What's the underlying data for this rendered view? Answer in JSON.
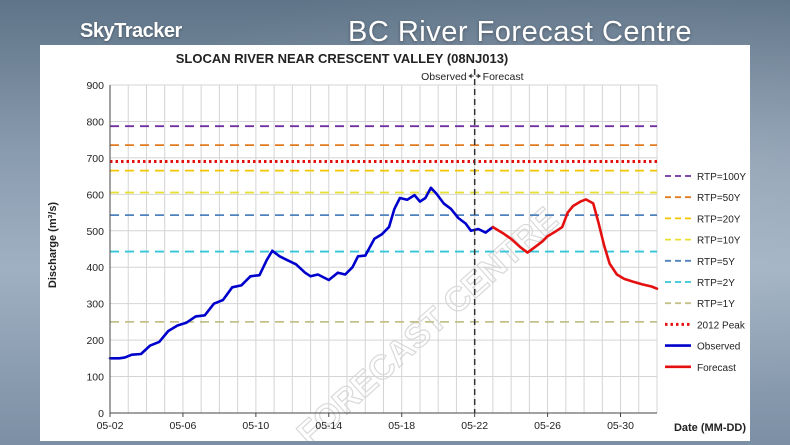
{
  "header": {
    "brand": "SkyTracker",
    "banner": "BC River Forecast Centre"
  },
  "colors": {
    "observed": "#0000cc",
    "forecast": "#e41010",
    "peak2012": "#e41010",
    "rtp100": "#7030a0",
    "rtp50": "#e07b20",
    "rtp20": "#f2c500",
    "rtp10": "#e8e030",
    "rtp5": "#4f81bd",
    "rtp2": "#33c6d8",
    "rtp1": "#c4c08a"
  },
  "chart_data": {
    "type": "line",
    "title": "SLOCAN RIVER NEAR CRESCENT VALLEY (08NJ013)",
    "xlabel": "Date (MM-DD)",
    "ylabel": "Discharge (m³/s)",
    "ylim": [
      0,
      900
    ],
    "yticks": [
      0,
      100,
      200,
      300,
      400,
      500,
      600,
      700,
      800,
      900
    ],
    "xlim": [
      0,
      30
    ],
    "xticks": [
      {
        "x": 0,
        "label": "05-02"
      },
      {
        "x": 4,
        "label": "05-06"
      },
      {
        "x": 8,
        "label": "05-10"
      },
      {
        "x": 12,
        "label": "05-14"
      },
      {
        "x": 16,
        "label": "05-18"
      },
      {
        "x": 20,
        "label": "05-22"
      },
      {
        "x": 24,
        "label": "05-26"
      },
      {
        "x": 28,
        "label": "05-30"
      }
    ],
    "grid": true,
    "divider": {
      "x": 20,
      "left_label": "Observed",
      "right_label": "Forecast"
    },
    "watermark": "FORECAST CENTRE",
    "reference_lines": [
      {
        "name": "RTP=100Y",
        "y": 787,
        "color": "#7030a0",
        "style": "dash"
      },
      {
        "name": "RTP=50Y",
        "y": 735,
        "color": "#e07b20",
        "style": "dash"
      },
      {
        "name": "RTP=20Y",
        "y": 665,
        "color": "#f2c500",
        "style": "dash"
      },
      {
        "name": "RTP=10Y",
        "y": 605,
        "color": "#e8e030",
        "style": "dash"
      },
      {
        "name": "RTP=5Y",
        "y": 543,
        "color": "#4f81bd",
        "style": "dash"
      },
      {
        "name": "RTP=2Y",
        "y": 443,
        "color": "#33c6d8",
        "style": "dash"
      },
      {
        "name": "RTP=1Y",
        "y": 250,
        "color": "#c4c08a",
        "style": "dash"
      },
      {
        "name": "2012 Peak",
        "y": 690,
        "color": "#e41010",
        "style": "dot"
      }
    ],
    "series": [
      {
        "name": "Observed",
        "color": "#0000cc",
        "points": [
          [
            0,
            150
          ],
          [
            0.5,
            150
          ],
          [
            0.8,
            152
          ],
          [
            1.2,
            160
          ],
          [
            1.7,
            162
          ],
          [
            2.2,
            185
          ],
          [
            2.7,
            195
          ],
          [
            3.2,
            225
          ],
          [
            3.7,
            240
          ],
          [
            4.2,
            248
          ],
          [
            4.7,
            265
          ],
          [
            5.2,
            268
          ],
          [
            5.7,
            300
          ],
          [
            6.2,
            310
          ],
          [
            6.7,
            345
          ],
          [
            7.2,
            350
          ],
          [
            7.7,
            375
          ],
          [
            8.2,
            378
          ],
          [
            8.6,
            420
          ],
          [
            8.9,
            445
          ],
          [
            9.3,
            430
          ],
          [
            9.7,
            420
          ],
          [
            10.2,
            408
          ],
          [
            10.7,
            385
          ],
          [
            11.0,
            375
          ],
          [
            11.4,
            380
          ],
          [
            12.0,
            365
          ],
          [
            12.5,
            385
          ],
          [
            12.9,
            380
          ],
          [
            13.3,
            400
          ],
          [
            13.6,
            430
          ],
          [
            14.0,
            432
          ],
          [
            14.5,
            478
          ],
          [
            14.9,
            490
          ],
          [
            15.3,
            510
          ],
          [
            15.6,
            560
          ],
          [
            15.9,
            590
          ],
          [
            16.3,
            585
          ],
          [
            16.7,
            598
          ],
          [
            17.0,
            580
          ],
          [
            17.3,
            590
          ],
          [
            17.6,
            618
          ],
          [
            17.9,
            602
          ],
          [
            18.3,
            575
          ],
          [
            18.7,
            560
          ],
          [
            19.1,
            535
          ],
          [
            19.5,
            520
          ],
          [
            19.8,
            500
          ],
          [
            20.2,
            505
          ],
          [
            20.6,
            495
          ],
          [
            21.0,
            510
          ]
        ]
      },
      {
        "name": "Forecast",
        "color": "#e41010",
        "points": [
          [
            21.0,
            510
          ],
          [
            21.5,
            495
          ],
          [
            22.0,
            478
          ],
          [
            22.5,
            455
          ],
          [
            22.9,
            440
          ],
          [
            23.3,
            455
          ],
          [
            23.7,
            470
          ],
          [
            24.0,
            485
          ],
          [
            24.4,
            497
          ],
          [
            24.8,
            510
          ],
          [
            25.1,
            550
          ],
          [
            25.4,
            568
          ],
          [
            25.8,
            580
          ],
          [
            26.1,
            586
          ],
          [
            26.5,
            575
          ],
          [
            26.8,
            520
          ],
          [
            27.1,
            460
          ],
          [
            27.4,
            410
          ],
          [
            27.8,
            380
          ],
          [
            28.2,
            368
          ],
          [
            28.7,
            360
          ],
          [
            29.2,
            353
          ],
          [
            29.7,
            347
          ],
          [
            30.0,
            341
          ]
        ]
      }
    ],
    "legend": {
      "position": "right",
      "entries": [
        {
          "label": "RTP=100Y",
          "color": "#7030a0",
          "style": "dash"
        },
        {
          "label": "RTP=50Y",
          "color": "#e07b20",
          "style": "dash"
        },
        {
          "label": "RTP=20Y",
          "color": "#f2c500",
          "style": "dash"
        },
        {
          "label": "RTP=10Y",
          "color": "#e8e030",
          "style": "dash"
        },
        {
          "label": "RTP=5Y",
          "color": "#4f81bd",
          "style": "dash"
        },
        {
          "label": "RTP=2Y",
          "color": "#33c6d8",
          "style": "dash"
        },
        {
          "label": "RTP=1Y",
          "color": "#c4c08a",
          "style": "dash"
        },
        {
          "label": "2012 Peak",
          "color": "#e41010",
          "style": "dot"
        },
        {
          "label": "Observed",
          "color": "#0000cc",
          "style": "solid"
        },
        {
          "label": "Forecast",
          "color": "#e41010",
          "style": "solid"
        }
      ]
    }
  }
}
